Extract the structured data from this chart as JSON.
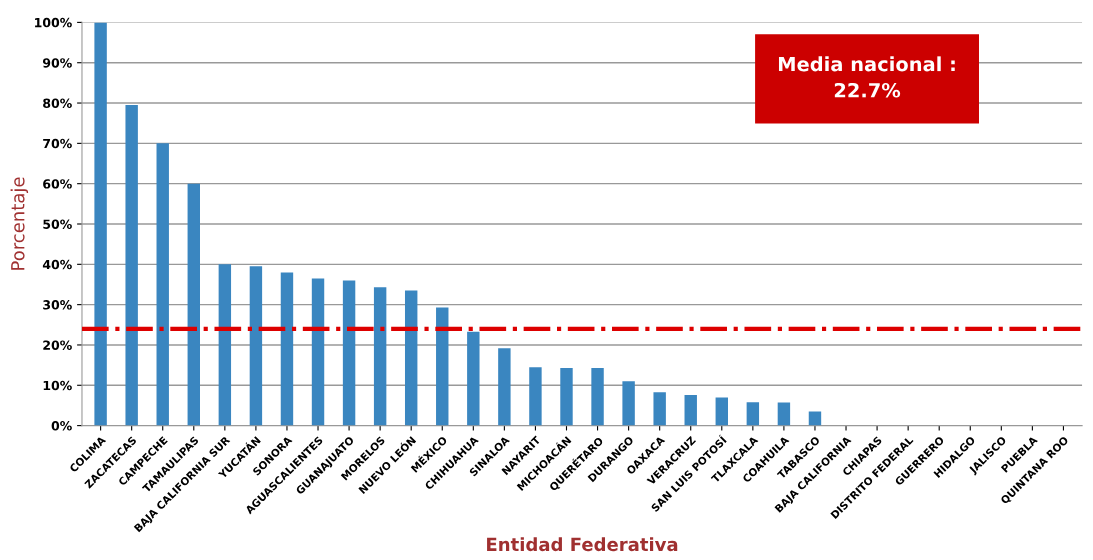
{
  "chart_data": {
    "type": "bar",
    "xlabel": "Entidad Federativa",
    "ylabel": "Porcentaje",
    "categories": [
      "COLIMA",
      "ZACATECAS",
      "CAMPECHE",
      "TAMAULIPAS",
      "BAJA CALIFORNIA SUR",
      "YUCATÁN",
      "SONORA",
      "AGUASCALIENTES",
      "GUANAJUATO",
      "MORELOS",
      "NUEVO LEÓN",
      "MÉXICO",
      "CHIHUAHUA",
      "SINALOA",
      "NAYARIT",
      "MICHOACÁN",
      "QUERÉTARO",
      "DURANGO",
      "OAXACA",
      "VERACRUZ",
      "SAN LUIS POTOSÍ",
      "TLAXCALA",
      "COAHUILA",
      "TABASCO",
      "BAJA CALIFORNIA",
      "CHIAPAS",
      "DISTRITO FEDERAL",
      "GUERRERO",
      "HIDALGO",
      "JALISCO",
      "PUEBLA",
      "QUINTANA ROO"
    ],
    "values": [
      100,
      79.5,
      70,
      60,
      40,
      39.5,
      38,
      36.5,
      36,
      34.3,
      33.5,
      29.3,
      23.3,
      19.2,
      14.5,
      14.3,
      14.3,
      11,
      8.3,
      7.6,
      7,
      5.8,
      5.7,
      3.5,
      0,
      0,
      0,
      0,
      0,
      0,
      0,
      0
    ],
    "color": "#3a86c0",
    "ylim": [
      0,
      100
    ],
    "yticks": [
      {
        "value": 0,
        "label": "0%"
      },
      {
        "value": 10,
        "label": "10%"
      },
      {
        "value": 20,
        "label": "20%"
      },
      {
        "value": 30,
        "label": "30%"
      },
      {
        "value": 40,
        "label": "40%"
      },
      {
        "value": 50,
        "label": "50%"
      },
      {
        "value": 60,
        "label": "60%"
      },
      {
        "value": 70,
        "label": "70%"
      },
      {
        "value": 80,
        "label": "80%"
      },
      {
        "value": 90,
        "label": "90%"
      },
      {
        "value": 100,
        "label": "100%"
      }
    ],
    "grid": "y",
    "ref_lines": [
      {
        "axis": "y",
        "value": 24,
        "color": "#dd0000",
        "line_style": "dashdot"
      }
    ],
    "annotations": [
      "Media nacional :\n22.7%"
    ]
  }
}
